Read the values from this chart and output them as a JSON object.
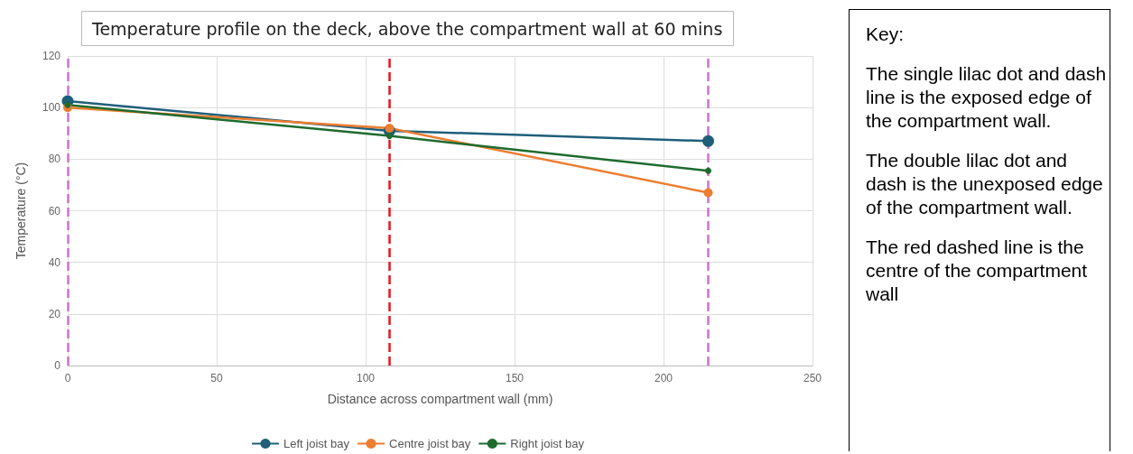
{
  "chart_data": {
    "type": "line",
    "title": "Temperature profile on the deck, above the compartment wall at 60 mins",
    "xlabel": "Distance across compartment wall (mm)",
    "ylabel": "Temperature (°C)",
    "x": [
      0,
      108,
      215
    ],
    "series": [
      {
        "name": "Left joist bay",
        "color": "#1f5f7a",
        "values": [
          102.5,
          91,
          87
        ]
      },
      {
        "name": "Centre joist bay",
        "color": "#ed7d31",
        "values": [
          100,
          92,
          67
        ]
      },
      {
        "name": "Right joist bay",
        "color": "#1e6b2e",
        "values": [
          101,
          89,
          75.5
        ]
      }
    ],
    "xlim": [
      0,
      250
    ],
    "xticks": [
      0,
      50,
      100,
      150,
      200,
      250
    ],
    "ylim": [
      0,
      120
    ],
    "yticks": [
      0,
      20,
      40,
      60,
      80,
      100,
      120
    ],
    "ref_lines": [
      {
        "axis": "x",
        "value": 0,
        "color": "#d070d0",
        "line_style": "dashed"
      },
      {
        "axis": "x",
        "value": 108,
        "color": "#e8141c",
        "line_style": "dashed"
      },
      {
        "axis": "x",
        "value": 215,
        "color": "#d070d0",
        "line_style": "dashed"
      }
    ],
    "annotations": [
      "Key:",
      "The single lilac dot and dash line is the exposed edge of the compartment wall.",
      "The double lilac dot and dash is the unexposed edge of the compartment wall.",
      "The red dashed line is the centre of the compartment wall"
    ],
    "grid": true,
    "legend": "bottom",
    "marker": "circle",
    "line_style": "solid"
  }
}
